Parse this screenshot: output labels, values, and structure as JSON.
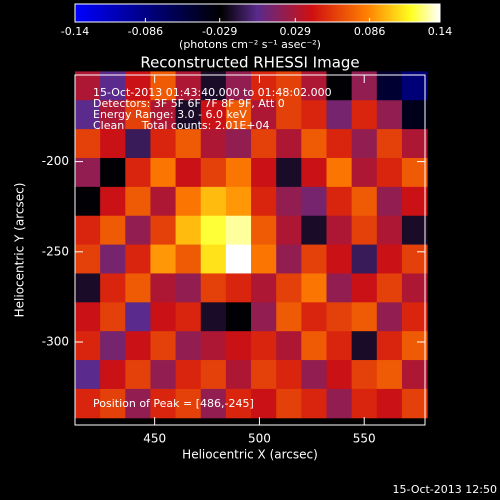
{
  "chart_data": {
    "type": "heatmap",
    "title": "Reconstructed RHESSI Image",
    "colorbar_label": "(photons cm⁻² s⁻¹ asec⁻²)",
    "xlabel": "Heliocentric X (arcsec)",
    "ylabel": "Heliocentric Y (arcsec)",
    "annotations": [
      "15-Oct-2013 01:43:40.000 to 01:48:02.000",
      "Detectors: 3F 5F 6F 7F 8F 9F, Att 0",
      "Energy Range: 3.0 - 6.0 keV",
      "Clean     Total counts: 2.01E+04"
    ],
    "peak_note": "Position of Peak = [486,-245]",
    "footer": "15-Oct-2013 12:50",
    "xlim": [
      412,
      579
    ],
    "ylim": [
      -346,
      -152
    ],
    "xticks": [
      450,
      500,
      550
    ],
    "yticks": [
      -200,
      -250,
      -300
    ],
    "zlim": [
      -0.14,
      0.14
    ],
    "zticks": [
      -0.14,
      -0.086,
      -0.029,
      0.029,
      0.086,
      0.14
    ],
    "colorscale": [
      [
        0,
        "#0000ff"
      ],
      [
        0.4,
        "#000000"
      ],
      [
        0.5,
        "#5a2a8c"
      ],
      [
        0.65,
        "#d01010"
      ],
      [
        0.8,
        "#ff8000"
      ],
      [
        0.92,
        "#ffff20"
      ],
      [
        1,
        "#ffffff"
      ]
    ],
    "x": [
      418,
      430,
      442,
      454,
      466,
      478,
      490,
      502,
      514,
      526,
      538,
      550,
      562,
      574
    ],
    "y": [
      -158,
      -174,
      -190,
      -206,
      -222,
      -238,
      -254,
      -270,
      -286,
      -302,
      -318,
      -334
    ],
    "z": [
      [
        0.03,
        0.0,
        0.04,
        0.07,
        0.03,
        -0.02,
        0.02,
        0.05,
        0.06,
        0.03,
        -0.03,
        0.02,
        -0.05,
        -0.08
      ],
      [
        0.0,
        0.03,
        0.06,
        0.03,
        -0.02,
        0.04,
        0.07,
        0.03,
        0.06,
        0.05,
        0.01,
        0.05,
        0.02,
        -0.04
      ],
      [
        0.06,
        0.04,
        -0.01,
        0.05,
        0.07,
        0.03,
        0.02,
        0.06,
        0.03,
        0.07,
        0.05,
        0.02,
        0.06,
        0.03
      ],
      [
        0.02,
        -0.03,
        0.05,
        0.08,
        0.04,
        0.06,
        0.08,
        0.04,
        -0.02,
        0.04,
        0.08,
        0.03,
        0.05,
        0.07
      ],
      [
        -0.03,
        0.04,
        0.07,
        0.03,
        0.08,
        0.1,
        0.09,
        0.05,
        0.02,
        0.01,
        0.05,
        0.07,
        0.02,
        0.04
      ],
      [
        0.05,
        0.07,
        0.02,
        0.06,
        0.1,
        0.12,
        0.13,
        0.07,
        0.03,
        -0.02,
        0.03,
        0.06,
        0.03,
        -0.02
      ],
      [
        0.06,
        0.01,
        0.05,
        0.09,
        0.07,
        0.11,
        0.14,
        0.08,
        0.02,
        0.06,
        0.04,
        -0.01,
        0.04,
        0.06
      ],
      [
        -0.02,
        0.05,
        0.07,
        0.03,
        0.02,
        0.06,
        0.05,
        0.03,
        0.06,
        0.08,
        0.02,
        0.04,
        0.06,
        0.03
      ],
      [
        0.04,
        0.06,
        0.0,
        0.04,
        0.05,
        -0.02,
        -0.03,
        0.02,
        0.07,
        0.05,
        0.06,
        0.07,
        0.02,
        0.05
      ],
      [
        0.05,
        0.01,
        0.04,
        0.06,
        0.02,
        0.03,
        0.04,
        0.05,
        0.03,
        0.07,
        0.05,
        -0.02,
        0.05,
        0.07
      ],
      [
        0.0,
        0.04,
        0.06,
        0.02,
        0.05,
        0.06,
        0.03,
        0.06,
        0.05,
        0.02,
        0.04,
        0.06,
        0.07,
        0.03
      ],
      [
        0.05,
        0.06,
        0.02,
        0.05,
        0.06,
        0.02,
        0.05,
        0.04,
        0.06,
        0.05,
        0.02,
        0.05,
        0.04,
        0.06
      ]
    ]
  }
}
